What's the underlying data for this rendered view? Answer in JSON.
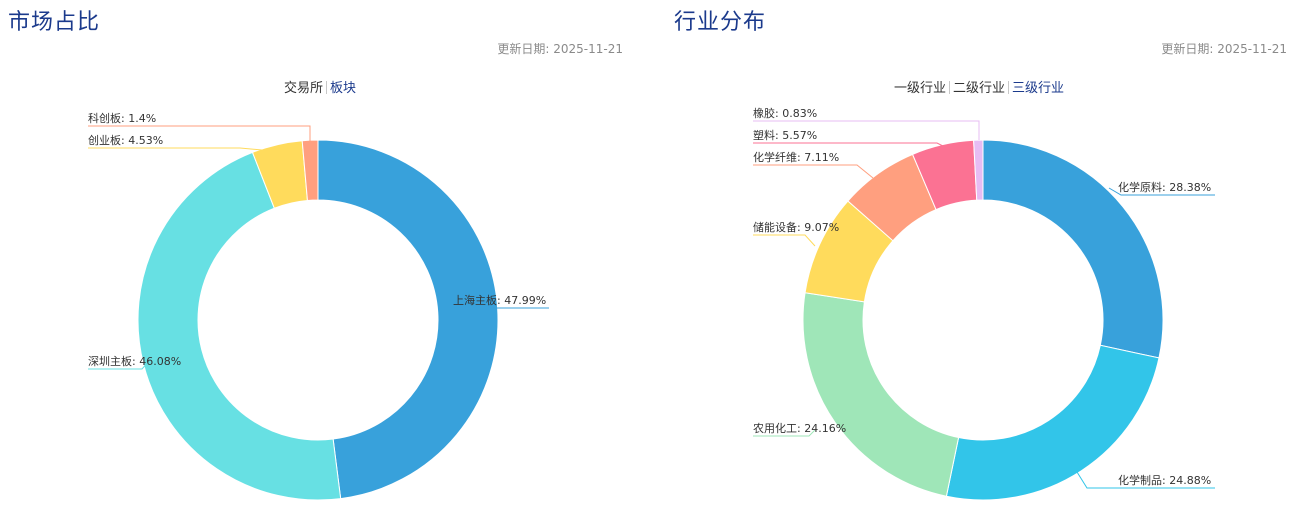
{
  "left": {
    "title": "市场占比",
    "update_date": "更新日期: 2025-11-21",
    "tabs": [
      {
        "label": "交易所",
        "active": false
      },
      {
        "label": "板块",
        "active": true
      }
    ]
  },
  "right": {
    "title": "行业分布",
    "update_date": "更新日期: 2025-11-21",
    "tabs": [
      {
        "label": "一级行业",
        "active": false
      },
      {
        "label": "二级行业",
        "active": false
      },
      {
        "label": "三级行业",
        "active": true
      }
    ]
  },
  "chart_data": [
    {
      "type": "pie",
      "donut": true,
      "slices": [
        {
          "label": "上海主板",
          "value": 47.99,
          "display": "上海主板: 47.99%",
          "color": "#38a1db"
        },
        {
          "label": "深圳主板",
          "value": 46.08,
          "display": "深圳主板: 46.08%",
          "color": "#67e0e3"
        },
        {
          "label": "创业板",
          "value": 4.53,
          "display": "创业板: 4.53%",
          "color": "#ffdb5c"
        },
        {
          "label": "科创板",
          "value": 1.4,
          "display": "科创板: 1.4%",
          "color": "#ff9f7f"
        }
      ]
    },
    {
      "type": "pie",
      "donut": true,
      "slices": [
        {
          "label": "化学原料",
          "value": 28.38,
          "display": "化学原料: 28.38%",
          "color": "#38a1db"
        },
        {
          "label": "化学制品",
          "value": 24.88,
          "display": "化学制品: 24.88%",
          "color": "#32c5e9"
        },
        {
          "label": "农用化工",
          "value": 24.16,
          "display": "农用化工: 24.16%",
          "color": "#9fe6b8"
        },
        {
          "label": "储能设备",
          "value": 9.07,
          "display": "储能设备: 9.07%",
          "color": "#ffdb5c"
        },
        {
          "label": "化学纤维",
          "value": 7.11,
          "display": "化学纤维: 7.11%",
          "color": "#ff9f7f"
        },
        {
          "label": "塑料",
          "value": 5.57,
          "display": "塑料: 5.57%",
          "color": "#fb7293"
        },
        {
          "label": "橡胶",
          "value": 0.83,
          "display": "橡胶: 0.83%",
          "color": "#e7bcf3"
        }
      ]
    }
  ]
}
